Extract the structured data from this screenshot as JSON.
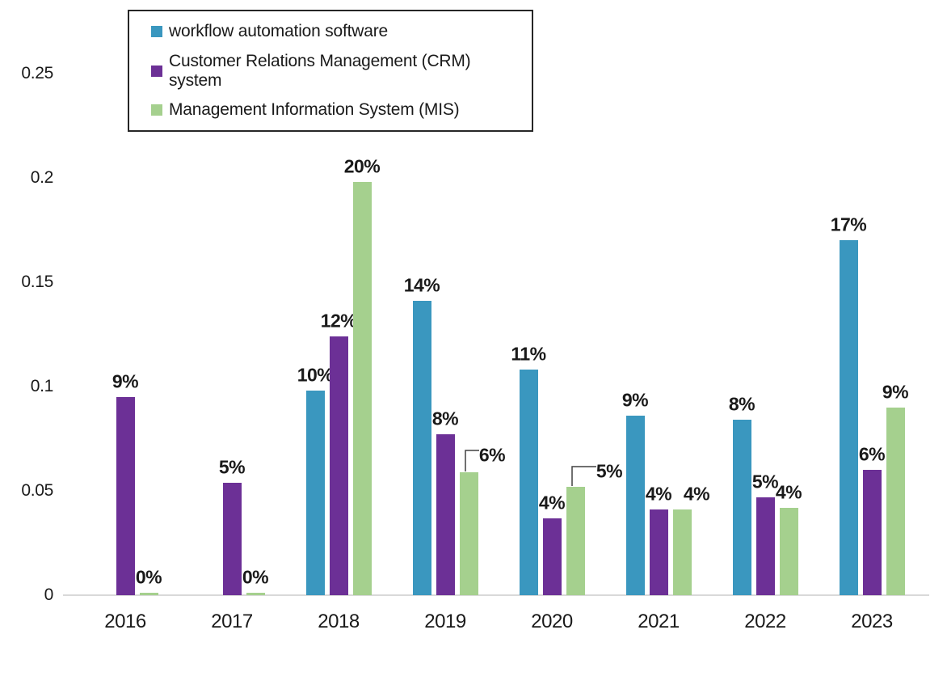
{
  "chart_data": {
    "type": "bar",
    "title": "",
    "categories": [
      "2016",
      "2017",
      "2018",
      "2019",
      "2020",
      "2021",
      "2022",
      "2023"
    ],
    "series": [
      {
        "key": "workflow",
        "name": "workflow automation software",
        "color": "#3A97BF",
        "values": [
          null,
          null,
          0.098,
          0.141,
          0.108,
          0.086,
          0.084,
          0.17
        ],
        "labels": [
          "",
          "",
          "10%",
          "14%",
          "11%",
          "9%",
          "8%",
          "17%"
        ]
      },
      {
        "key": "crm",
        "name": "Customer Relations Management (CRM) system",
        "color": "#6C3096",
        "values": [
          0.095,
          0.054,
          0.124,
          0.077,
          0.037,
          0.041,
          0.047,
          0.06
        ],
        "labels": [
          "9%",
          "5%",
          "12%",
          "8%",
          "4%",
          "4%",
          "5%",
          "6%"
        ]
      },
      {
        "key": "mis",
        "name": "Management Information System (MIS)",
        "color": "#A5D08E",
        "values": [
          0.001,
          0.001,
          0.198,
          0.059,
          0.052,
          0.041,
          0.042,
          0.09
        ],
        "labels": [
          "0%",
          "0%",
          "20%",
          "6%",
          "5%",
          "4%",
          "4%",
          "9%"
        ],
        "label_offsets": {
          "3": [
            29,
            -2
          ],
          "4": [
            42,
            0
          ],
          "5": [
            18,
            0
          ]
        },
        "callouts": [
          3,
          4
        ]
      }
    ],
    "y_axis": {
      "min": 0,
      "max": 0.25,
      "ticks": [
        0,
        0.05,
        0.1,
        0.15,
        0.2,
        0.25
      ],
      "tick_labels": [
        "0",
        "0.05",
        "0.1",
        "0.15",
        "0.2",
        "0.25"
      ]
    },
    "legend": {
      "position": "top-left",
      "border": true
    },
    "grid": false
  },
  "colors": {
    "background": "#ffffff",
    "text": "#1a1a1a",
    "axis_line": "#d9d9d9",
    "legend_border": "#262626",
    "callout_line": "#404040"
  }
}
